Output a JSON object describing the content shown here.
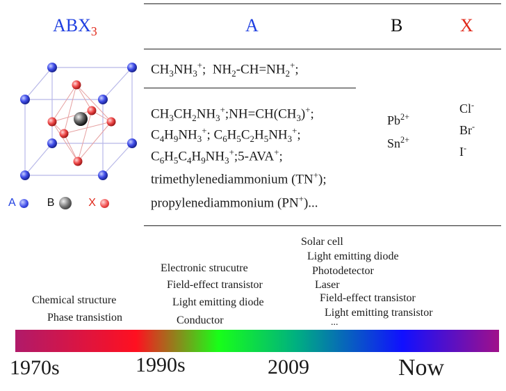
{
  "header": {
    "formula_prefix": "ABX",
    "formula_sub": "3",
    "col_a": "A",
    "col_b": "B",
    "col_x": "X"
  },
  "legend": {
    "a": "A",
    "b": "B",
    "x": "X"
  },
  "a_site": {
    "row1": {
      "ch3nh3_sup": "+",
      "nh2_sup": "+"
    },
    "row2": {
      "l1_ch3ch2nh3_sup": "+",
      "l1_nh_sup": "+",
      "l2_sup_a": "+",
      "l2_sup_b": "+",
      "l3_sup_a": "+",
      "l3_sup_b": "+",
      "l4": "trimethylenediammonium (TN",
      "l4_sup": "+",
      "l4_end": ");",
      "l5": "propylenediammonium (PN",
      "l5_sup": "+",
      "l5_end": ")..."
    }
  },
  "b_site": {
    "pb": "Pb",
    "pb_charge": "2+",
    "sn": "Sn",
    "sn_charge": "2+"
  },
  "x_site": {
    "cl": "Cl",
    "br": "Br",
    "i": "I",
    "charge": "-"
  },
  "timeline": {
    "eras": [
      "1970s",
      "1990s",
      "2009",
      "Now"
    ],
    "apps_1970s": [
      "Chemical structure",
      "Phase transistion"
    ],
    "apps_1990s": [
      "Electronic strucutre",
      "Field-effect transistor",
      "Light emitting diode",
      "Conductor"
    ],
    "apps_2009": [
      "Solar cell",
      "Light emitting diode",
      "Photodetector",
      "Laser",
      "Field-effect transistor",
      "Light emitting transistor",
      "..."
    ]
  },
  "colors": {
    "a_blue": "#1f3fe0",
    "x_red": "#e0281a",
    "b_gray": "#555555"
  }
}
